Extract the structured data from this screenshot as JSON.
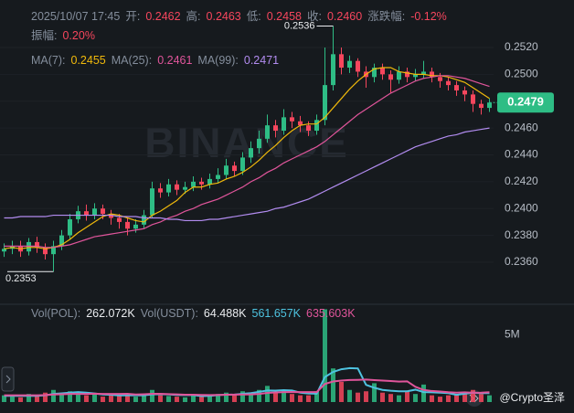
{
  "header": {
    "time": "2025/10/07 17:45",
    "fields": [
      {
        "label": "开:",
        "value": "0.2462"
      },
      {
        "label": "高:",
        "value": "0.2463"
      },
      {
        "label": "低:",
        "value": "0.2458"
      },
      {
        "label": "收:",
        "value": "0.2460"
      },
      {
        "label": "涨跌幅:",
        "value": "-0.12%"
      },
      {
        "label": "振幅:",
        "value": "0.20%"
      }
    ]
  },
  "watermark": "BINANCE",
  "signature": "@Crypto圣泽",
  "chart_data": [
    {
      "type": "candlestick",
      "up_color": "#2ebd85",
      "down_color": "#f6465d",
      "open": [
        0.2368,
        0.237,
        0.2372,
        0.2368,
        0.2375,
        0.2371,
        0.2366,
        0.2372,
        0.238,
        0.2392,
        0.2398,
        0.2395,
        0.24,
        0.2396,
        0.2393,
        0.239,
        0.2385,
        0.2388,
        0.2395,
        0.2415,
        0.2412,
        0.2418,
        0.2414,
        0.2416,
        0.242,
        0.2418,
        0.2422,
        0.2425,
        0.2432,
        0.2428,
        0.2438,
        0.2445,
        0.2452,
        0.2462,
        0.2458,
        0.2468,
        0.2465,
        0.2462,
        0.2458,
        0.2466,
        0.2492,
        0.2515,
        0.2505,
        0.251,
        0.2502,
        0.2498,
        0.2505,
        0.25,
        0.2496,
        0.2502,
        0.2498,
        0.25,
        0.2502,
        0.2498,
        0.2495,
        0.2492,
        0.2488,
        0.2485,
        0.2478,
        0.2475
      ],
      "high": [
        0.2374,
        0.2376,
        0.2376,
        0.2378,
        0.2379,
        0.2374,
        0.2376,
        0.2384,
        0.2396,
        0.2402,
        0.2403,
        0.2404,
        0.2403,
        0.2399,
        0.2396,
        0.2393,
        0.2392,
        0.2399,
        0.242,
        0.2419,
        0.2422,
        0.2421,
        0.242,
        0.2424,
        0.2423,
        0.2426,
        0.243,
        0.2437,
        0.2435,
        0.2442,
        0.245,
        0.2458,
        0.247,
        0.2466,
        0.2474,
        0.2472,
        0.2469,
        0.2465,
        0.247,
        0.252,
        0.2536,
        0.252,
        0.2514,
        0.2512,
        0.2506,
        0.2508,
        0.2508,
        0.2503,
        0.2506,
        0.2505,
        0.2504,
        0.251,
        0.2505,
        0.2501,
        0.2498,
        0.2495,
        0.2491,
        0.2488,
        0.2481,
        0.2482
      ],
      "low": [
        0.2364,
        0.2366,
        0.2364,
        0.2365,
        0.2367,
        0.2362,
        0.2353,
        0.2369,
        0.2377,
        0.2389,
        0.2391,
        0.2392,
        0.2392,
        0.2388,
        0.2385,
        0.238,
        0.2382,
        0.2385,
        0.2393,
        0.2408,
        0.2409,
        0.241,
        0.2411,
        0.2413,
        0.2414,
        0.2415,
        0.2419,
        0.2422,
        0.2424,
        0.2425,
        0.2434,
        0.2441,
        0.2449,
        0.2453,
        0.2455,
        0.246,
        0.2457,
        0.2454,
        0.2455,
        0.2462,
        0.2488,
        0.25,
        0.2501,
        0.2498,
        0.249,
        0.2494,
        0.2496,
        0.2486,
        0.2493,
        0.2494,
        0.2495,
        0.2497,
        0.2494,
        0.249,
        0.2488,
        0.2484,
        0.248,
        0.2472,
        0.247,
        0.2472
      ],
      "close": [
        0.237,
        0.2372,
        0.2368,
        0.2375,
        0.2371,
        0.2366,
        0.2372,
        0.238,
        0.2392,
        0.2398,
        0.2395,
        0.24,
        0.2396,
        0.2393,
        0.239,
        0.2385,
        0.2388,
        0.2395,
        0.2415,
        0.2412,
        0.2418,
        0.2414,
        0.2416,
        0.242,
        0.2418,
        0.2422,
        0.2425,
        0.2432,
        0.2428,
        0.2438,
        0.2445,
        0.2452,
        0.2462,
        0.2458,
        0.2468,
        0.2465,
        0.2462,
        0.2458,
        0.2466,
        0.2492,
        0.2515,
        0.2505,
        0.251,
        0.2502,
        0.2498,
        0.2505,
        0.25,
        0.2496,
        0.2502,
        0.2498,
        0.25,
        0.2502,
        0.2498,
        0.2495,
        0.2492,
        0.2488,
        0.2485,
        0.2478,
        0.2475,
        0.2479
      ],
      "series": [
        {
          "name": "MA(7):",
          "legend_value": "0.2455",
          "color": "#f0b90b",
          "values": [
            0.237,
            0.2371,
            0.237,
            0.2371,
            0.2371,
            0.237,
            0.2371,
            0.2373,
            0.2377,
            0.2382,
            0.2386,
            0.239,
            0.2394,
            0.2396,
            0.2395,
            0.2393,
            0.2391,
            0.239,
            0.2395,
            0.2398,
            0.2402,
            0.2406,
            0.2412,
            0.2416,
            0.2416,
            0.2418,
            0.2419,
            0.2422,
            0.2424,
            0.2427,
            0.2431,
            0.2436,
            0.2442,
            0.2447,
            0.2453,
            0.2458,
            0.2462,
            0.2463,
            0.2463,
            0.2468,
            0.2475,
            0.2482,
            0.2489,
            0.2495,
            0.25,
            0.2504,
            0.2505,
            0.2505,
            0.2502,
            0.2501,
            0.25,
            0.25,
            0.2499,
            0.2499,
            0.2498,
            0.2496,
            0.2494,
            0.249,
            0.2486,
            0.2482
          ]
        },
        {
          "name": "MA(25):",
          "legend_value": "0.2461",
          "color": "#e0559b",
          "values": [
            0.2372,
            0.2372,
            0.2372,
            0.2372,
            0.2372,
            0.2371,
            0.2371,
            0.2372,
            0.2373,
            0.2375,
            0.2377,
            0.2379,
            0.238,
            0.2381,
            0.2382,
            0.2383,
            0.2384,
            0.2385,
            0.2388,
            0.239,
            0.2393,
            0.2395,
            0.2398,
            0.24,
            0.2403,
            0.2405,
            0.2407,
            0.241,
            0.2413,
            0.2416,
            0.242,
            0.2423,
            0.2427,
            0.243,
            0.2434,
            0.2437,
            0.244,
            0.2443,
            0.2446,
            0.245,
            0.2455,
            0.246,
            0.2465,
            0.247,
            0.2474,
            0.2478,
            0.2482,
            0.2486,
            0.2489,
            0.2492,
            0.2495,
            0.2497,
            0.2498,
            0.2499,
            0.2499,
            0.2498,
            0.2497,
            0.2495,
            0.2493,
            0.2491
          ]
        },
        {
          "name": "MA(99):",
          "legend_value": "0.2471",
          "color": "#b28cf0",
          "values": [
            0.2393,
            0.2393,
            0.2394,
            0.2394,
            0.2394,
            0.2394,
            0.2395,
            0.2395,
            0.2395,
            0.2395,
            0.2395,
            0.2395,
            0.2395,
            0.2395,
            0.2394,
            0.2394,
            0.2394,
            0.2393,
            0.2393,
            0.2393,
            0.2392,
            0.2392,
            0.2391,
            0.2391,
            0.2391,
            0.2392,
            0.2392,
            0.2393,
            0.2394,
            0.2395,
            0.2396,
            0.2397,
            0.2398,
            0.24,
            0.2401,
            0.2403,
            0.2405,
            0.2407,
            0.241,
            0.2413,
            0.2416,
            0.2419,
            0.2422,
            0.2425,
            0.2428,
            0.2431,
            0.2434,
            0.2437,
            0.244,
            0.2443,
            0.2446,
            0.2448,
            0.245,
            0.2452,
            0.2454,
            0.2455,
            0.2457,
            0.2458,
            0.2459,
            0.246
          ]
        }
      ],
      "ylim": [
        0.23307,
        0.25554
      ],
      "yticks": [
        {
          "value": 0.236,
          "label": "0.2360"
        },
        {
          "value": 0.238,
          "label": "0.2380"
        },
        {
          "value": 0.24,
          "label": "0.2400"
        },
        {
          "value": 0.242,
          "label": "0.2420"
        },
        {
          "value": 0.244,
          "label": "0.2440"
        },
        {
          "value": 0.246,
          "label": "0.2460"
        },
        {
          "value": 0.248,
          "label": "0.2480"
        },
        {
          "value": 0.25,
          "label": "0.2500"
        },
        {
          "value": 0.252,
          "label": "0.2520"
        }
      ],
      "grid": true,
      "annotations": [
        {
          "value": 0.2536,
          "label": "0.2536"
        },
        {
          "value": 0.2353,
          "label": "0.2353"
        }
      ],
      "last_price": {
        "value": 0.2479,
        "label": "0.2479"
      }
    },
    {
      "type": "volume",
      "legend": [
        {
          "label": "Vol(POL):",
          "value": "262.072K"
        },
        {
          "label": "Vol(USDT):",
          "value": "64.488K"
        }
      ],
      "values": [
        500000,
        400000,
        350000,
        600000,
        450000,
        700000,
        900000,
        600000,
        800000,
        700000,
        500000,
        600000,
        400000,
        500000,
        450000,
        550000,
        400000,
        600000,
        900000,
        500000,
        450000,
        400000,
        350000,
        500000,
        400000,
        450000,
        600000,
        700000,
        500000,
        800000,
        700000,
        900000,
        1200000,
        700000,
        900000,
        600000,
        500000,
        500000,
        800000,
        6900000,
        2500000,
        1500000,
        900000,
        700000,
        800000,
        1400000,
        700000,
        600000,
        500000,
        800000,
        600000,
        1300000,
        500000,
        400000,
        500000,
        600000,
        700000,
        900000,
        600000,
        500000
      ],
      "series": [
        {
          "legend_value": "561.657K",
          "color": "#4ec3e0",
          "values": [
            460000,
            460000,
            460000,
            460000,
            460000,
            500000,
            600000,
            650000,
            700000,
            740000,
            700000,
            640000,
            560000,
            540000,
            490000,
            500000,
            500000,
            500000,
            570000,
            590000,
            570000,
            530000,
            520000,
            520000,
            440000,
            460000,
            520000,
            540000,
            550000,
            610000,
            660000,
            760000,
            860000,
            850000,
            880000,
            860000,
            700000,
            640000,
            620000,
            1860000,
            2240000,
            2440000,
            2520000,
            2500000,
            1280000,
            1060000,
            900000,
            840000,
            800000,
            800000,
            920000,
            740000,
            720000,
            700000,
            660000,
            540000,
            620000,
            700000,
            660000,
            660000
          ]
        },
        {
          "legend_value": "635.603K",
          "color": "#e0559b",
          "values": [
            500000,
            500000,
            500000,
            500000,
            500000,
            520000,
            560000,
            580000,
            600000,
            600000,
            600000,
            620000,
            600000,
            600000,
            600000,
            610000,
            560000,
            580000,
            610000,
            610000,
            590000,
            570000,
            540000,
            540000,
            530000,
            520000,
            530000,
            540000,
            550000,
            560000,
            570000,
            600000,
            680000,
            710000,
            740000,
            750000,
            740000,
            740000,
            740000,
            1350000,
            1530000,
            1600000,
            1640000,
            1650000,
            1670000,
            1630000,
            1600000,
            1560000,
            1520000,
            1540000,
            1130000,
            900000,
            820000,
            780000,
            730000,
            700000,
            720000,
            690000,
            700000,
            730000
          ]
        }
      ],
      "ylim": [
        0,
        7000000
      ],
      "yticks": [
        {
          "value": 5000000,
          "label": "5M"
        }
      ]
    }
  ]
}
